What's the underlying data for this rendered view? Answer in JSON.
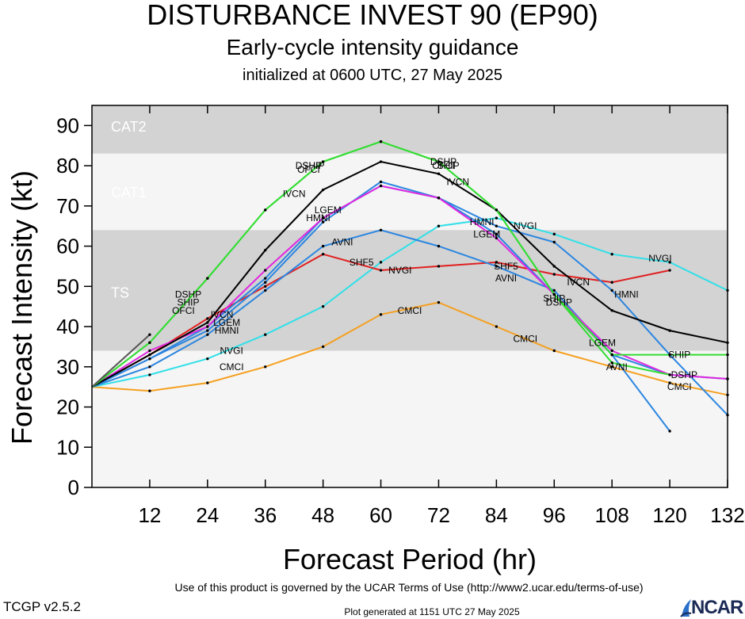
{
  "header": {
    "title": "DISTURBANCE INVEST 90 (EP90)",
    "subtitle": "Early-cycle intensity guidance",
    "initialized": "initialized at 0600 UTC, 27 May 2025"
  },
  "footer": {
    "terms": "Use of this product is governed by the UCAR Terms of Use (http://www2.ucar.edu/terms-of-use)",
    "version": "TCGP v2.5.2",
    "generated": "Plot generated at 1151 UTC   27 May 2025",
    "logo_text": "NCAR",
    "logo_icon": "ncar-logo-icon"
  },
  "chart_data": {
    "type": "line",
    "title": "DISTURBANCE INVEST 90 (EP90)",
    "xlabel": "Forecast Period (hr)",
    "ylabel": "Forecast Intensity (kt)",
    "xlim": [
      0,
      132
    ],
    "ylim": [
      0,
      95
    ],
    "xticks": [
      12,
      24,
      36,
      48,
      60,
      72,
      84,
      96,
      108,
      120,
      132
    ],
    "yticks": [
      0,
      10,
      20,
      30,
      40,
      50,
      60,
      70,
      80,
      90
    ],
    "grid": false,
    "bands": [
      {
        "label": "CAT2",
        "from": 83,
        "to": 95,
        "color": "#d3d3d3"
      },
      {
        "label": "CAT1",
        "from": 64,
        "to": 83,
        "color": "#f5f5f5"
      },
      {
        "label": "TS",
        "from": 34,
        "to": 64,
        "color": "#d3d3d3"
      },
      {
        "label": "",
        "from": 0,
        "to": 34,
        "color": "#f5f5f5"
      }
    ],
    "series": [
      {
        "name": "CMCI",
        "color": "#f5a020",
        "x": [
          0,
          12,
          24,
          36,
          48,
          60,
          72,
          84,
          96,
          108,
          120,
          132
        ],
        "y": [
          25,
          24,
          26,
          30,
          35,
          43,
          46,
          40,
          34,
          30,
          26,
          23
        ]
      },
      {
        "name": "NVGI",
        "color": "#30e0e8",
        "x": [
          0,
          12,
          24,
          36,
          48,
          60,
          72,
          84,
          96,
          108,
          120,
          132
        ],
        "y": [
          25,
          28,
          32,
          38,
          45,
          56,
          65,
          67,
          63,
          58,
          56,
          49
        ]
      },
      {
        "name": "SHF5",
        "color": "#e02020",
        "x": [
          0,
          12,
          24,
          36,
          48,
          60,
          72,
          84,
          96,
          108,
          120
        ],
        "y": [
          25,
          33,
          42,
          50,
          58,
          54,
          55,
          56,
          53,
          51,
          54
        ]
      },
      {
        "name": "AVNI",
        "color": "#2c86e0",
        "x": [
          0,
          12,
          24,
          36,
          48,
          60,
          72,
          84,
          96,
          108,
          120
        ],
        "y": [
          25,
          30,
          38,
          49,
          60,
          64,
          60,
          55,
          49,
          33,
          14
        ]
      },
      {
        "name": "HMNI",
        "color": "#2c86e0",
        "x": [
          0,
          12,
          24,
          36,
          48,
          60,
          72,
          84,
          96,
          108,
          120,
          132
        ],
        "y": [
          25,
          32,
          39,
          51,
          66,
          76,
          72,
          65,
          61,
          49,
          33,
          18
        ]
      },
      {
        "name": "LGEM",
        "color": "#2c86e0",
        "x": [
          0,
          12,
          24,
          36,
          48,
          60,
          72,
          84,
          96,
          108,
          120,
          132
        ],
        "y": [
          25,
          32,
          40,
          52,
          67,
          75,
          72,
          63,
          48,
          33,
          28,
          27
        ]
      },
      {
        "name": "DSHP",
        "color": "#e028e0",
        "x": [
          0,
          12,
          24,
          36,
          48,
          60,
          72,
          84,
          96,
          108,
          120,
          132
        ],
        "y": [
          25,
          34,
          40,
          54,
          67,
          75,
          72,
          62,
          48,
          34,
          28,
          27
        ]
      },
      {
        "name": "IVCN",
        "color": "#000000",
        "x": [
          0,
          12,
          24,
          36,
          48,
          60,
          72,
          84,
          96,
          108,
          120,
          132
        ],
        "y": [
          25,
          33,
          41,
          59,
          74,
          81,
          78,
          69,
          55,
          44,
          39,
          36
        ]
      },
      {
        "name": "SHIP",
        "color": "#33dd33",
        "x": [
          0,
          12,
          24,
          36,
          48,
          60,
          72,
          84,
          96,
          108,
          120,
          132
        ],
        "y": [
          25,
          36,
          52,
          69,
          81,
          86,
          81,
          69,
          48,
          33,
          33,
          33
        ]
      },
      {
        "name": "",
        "color": "#33dd33",
        "x": [
          0,
          12,
          24,
          36,
          48,
          60,
          72,
          84,
          96,
          108,
          120
        ],
        "y": [
          25,
          36,
          52,
          69,
          81,
          86,
          81,
          69,
          48,
          31,
          28
        ]
      },
      {
        "name": "",
        "color": "#555555",
        "x": [
          0,
          12
        ],
        "y": [
          25,
          38
        ]
      }
    ],
    "labels": [
      {
        "text": "CMCI",
        "x": 29,
        "y": 30,
        "color": "#000000"
      },
      {
        "text": "CMCI",
        "x": 66,
        "y": 44,
        "color": "#000000"
      },
      {
        "text": "CMCI",
        "x": 90,
        "y": 37,
        "color": "#000000"
      },
      {
        "text": "CMCI",
        "x": 122,
        "y": 25,
        "color": "#000000"
      },
      {
        "text": "NVGI",
        "x": 29,
        "y": 34,
        "color": "#000000"
      },
      {
        "text": "NVGI",
        "x": 64,
        "y": 54,
        "color": "#000000"
      },
      {
        "text": "NVGI",
        "x": 90,
        "y": 65,
        "color": "#000000"
      },
      {
        "text": "NVGI",
        "x": 118,
        "y": 57,
        "color": "#000000"
      },
      {
        "text": "SHF5",
        "x": 56,
        "y": 56,
        "color": "#000000"
      },
      {
        "text": "SHF5",
        "x": 86,
        "y": 55,
        "color": "#000000"
      },
      {
        "text": "AVNI",
        "x": 52,
        "y": 61,
        "color": "#000000"
      },
      {
        "text": "AVNI",
        "x": 86,
        "y": 52,
        "color": "#000000"
      },
      {
        "text": "AVNI",
        "x": 109,
        "y": 30,
        "color": "#000000"
      },
      {
        "text": "HMNI",
        "x": 28,
        "y": 39,
        "color": "#000000"
      },
      {
        "text": "HMNI",
        "x": 47,
        "y": 67,
        "color": "#000000"
      },
      {
        "text": "HMNI",
        "x": 81,
        "y": 66,
        "color": "#000000"
      },
      {
        "text": "HMNI",
        "x": 111,
        "y": 48,
        "color": "#000000"
      },
      {
        "text": "LGEM",
        "x": 28,
        "y": 41,
        "color": "#000000"
      },
      {
        "text": "LGEM",
        "x": 49,
        "y": 69,
        "color": "#000000"
      },
      {
        "text": "LGEM",
        "x": 82,
        "y": 63,
        "color": "#000000"
      },
      {
        "text": "LGEM",
        "x": 106,
        "y": 36,
        "color": "#000000"
      },
      {
        "text": "DSHP",
        "x": 20,
        "y": 48,
        "color": "#000000"
      },
      {
        "text": "DSHP",
        "x": 45,
        "y": 80,
        "color": "#000000"
      },
      {
        "text": "DSHP",
        "x": 73,
        "y": 81,
        "color": "#000000"
      },
      {
        "text": "DSHP",
        "x": 97,
        "y": 46,
        "color": "#000000"
      },
      {
        "text": "DSHP",
        "x": 123,
        "y": 28,
        "color": "#000000"
      },
      {
        "text": "IVCN",
        "x": 27,
        "y": 43,
        "color": "#000000"
      },
      {
        "text": "IVCN",
        "x": 42,
        "y": 73,
        "color": "#000000"
      },
      {
        "text": "IVCN",
        "x": 76,
        "y": 76,
        "color": "#000000"
      },
      {
        "text": "IVCN",
        "x": 101,
        "y": 51,
        "color": "#000000"
      },
      {
        "text": "SHIP",
        "x": 20,
        "y": 46,
        "color": "#000000"
      },
      {
        "text": "SHIP",
        "x": 46,
        "y": 80,
        "color": "#000000"
      },
      {
        "text": "SHIP",
        "x": 74,
        "y": 80,
        "color": "#000000"
      },
      {
        "text": "SHIP",
        "x": 96,
        "y": 47,
        "color": "#000000"
      },
      {
        "text": "SHIP",
        "x": 122,
        "y": 33,
        "color": "#000000"
      },
      {
        "text": "OFCI",
        "x": 19,
        "y": 44,
        "color": "#000000"
      },
      {
        "text": "OFCI",
        "x": 45,
        "y": 79,
        "color": "#000000"
      },
      {
        "text": "OFCI",
        "x": 73,
        "y": 80,
        "color": "#000000"
      }
    ]
  }
}
